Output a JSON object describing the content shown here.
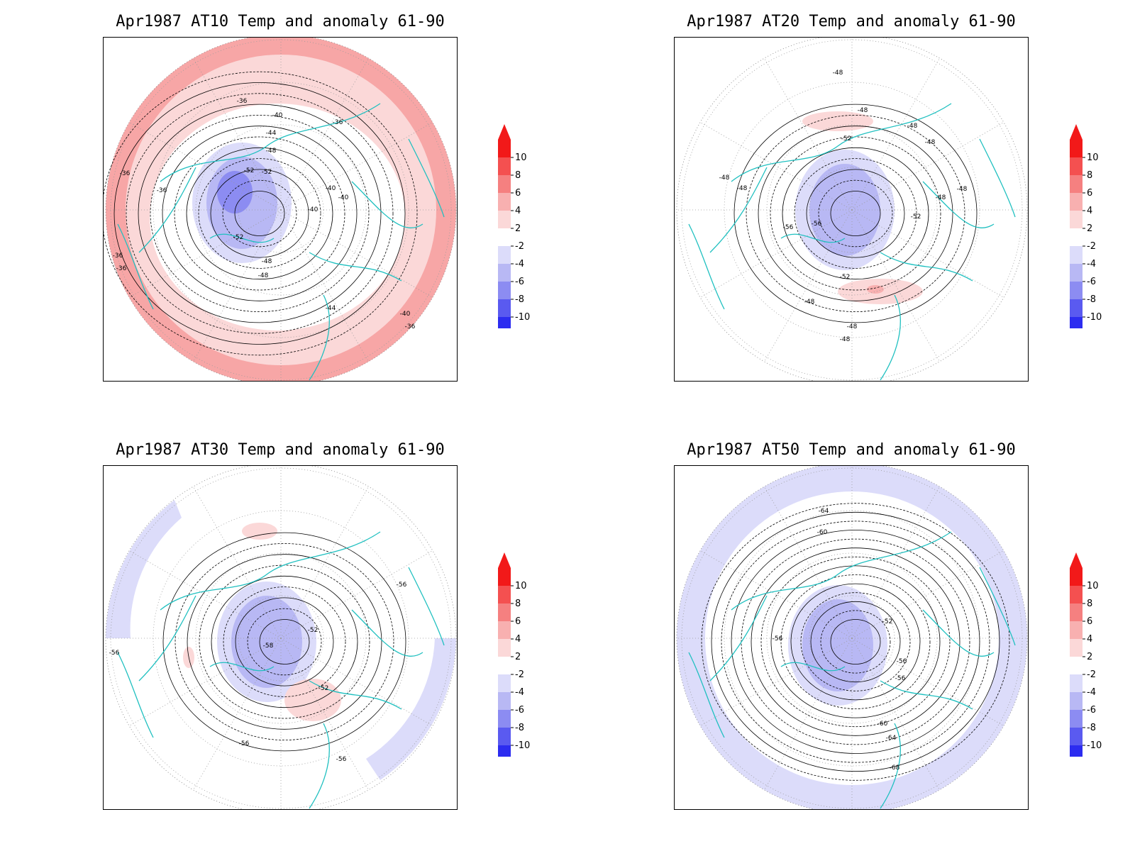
{
  "panels": [
    {
      "id": "at10",
      "title": "Apr1987 AT10 Temp and anomaly 61-90",
      "contour_labels": [
        "-36",
        "-36",
        "-36",
        "-40",
        "-44",
        "-48",
        "-52",
        "-52",
        "-40",
        "-40",
        "-40",
        "-52",
        "-48",
        "-48",
        "-44",
        "-40",
        "-36",
        "-36",
        "-36",
        "-36"
      ],
      "anomaly_ring": "warm"
    },
    {
      "id": "at20",
      "title": "Apr1987 AT20 Temp and anomaly 61-90",
      "contour_labels": [
        "-48",
        "-48",
        "-48",
        "-48",
        "-52",
        "-48",
        "-48",
        "-48",
        "-48",
        "-52",
        "-56",
        "-56",
        "-52",
        "-48",
        "-48",
        "-48"
      ],
      "anomaly_ring": "none"
    },
    {
      "id": "at30",
      "title": "Apr1987 AT30 Temp and anomaly 61-90",
      "contour_labels": [
        "-56",
        "-56",
        "-52",
        "-58",
        "-52",
        "-56",
        "-56"
      ],
      "anomaly_ring": "cool-partial"
    },
    {
      "id": "at50",
      "title": "Apr1987 AT50 Temp and anomaly 61-90",
      "contour_labels": [
        "-64",
        "-60",
        "-52",
        "-56",
        "-56",
        "-56",
        "-60",
        "-64",
        "-68"
      ],
      "anomaly_ring": "cool"
    }
  ],
  "colorbar": {
    "labels": [
      "10",
      "8",
      "6",
      "4",
      "2",
      "-2",
      "-4",
      "-6",
      "-8",
      "-10"
    ],
    "colors": [
      "#f21919",
      "#f45050",
      "#f58080",
      "#f8b0b0",
      "#fbd8d8",
      "#ffffff",
      "#dcdcfa",
      "#b8b8f4",
      "#8c8cf2",
      "#5a5af0",
      "#2c2cf0"
    ],
    "top_arrow_color": "#f21919",
    "bottom_arrow_color": "#2c2cf0"
  }
}
